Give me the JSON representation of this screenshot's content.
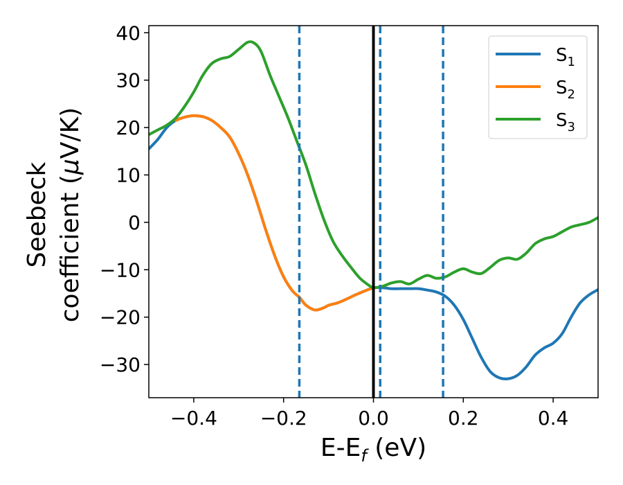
{
  "chart_data": {
    "type": "line",
    "xlabel_main": "E-E",
    "xlabel_sub": "f",
    "xlabel_tail": " (eV)",
    "ylabel_line1": "Seebeck",
    "ylabel_line2_prefix": "coefficient  (",
    "ylabel_line2_mu": "μ",
    "ylabel_line2_suffix": "V/K)",
    "xlim": [
      -0.5,
      0.5
    ],
    "ylim": [
      -37,
      41.5
    ],
    "xticks": [
      -0.4,
      -0.2,
      0.0,
      0.2,
      0.4
    ],
    "xtick_labels": [
      "−0.4",
      "−0.2",
      "0.0",
      "0.2",
      "0.4"
    ],
    "yticks": [
      -30,
      -20,
      -10,
      0,
      10,
      20,
      30,
      40
    ],
    "ytick_labels": [
      "−30",
      "−20",
      "−10",
      "0",
      "10",
      "20",
      "30",
      "40"
    ],
    "grid": false,
    "legend_position": "top-right",
    "vlines": [
      {
        "x": -0.165,
        "style": "dashed",
        "color": "#1f77b4"
      },
      {
        "x": 0.0,
        "style": "solid",
        "color": "#000000"
      },
      {
        "x": 0.015,
        "style": "dashed",
        "color": "#1f77b4"
      },
      {
        "x": 0.155,
        "style": "dashed",
        "color": "#1f77b4"
      }
    ],
    "series": [
      {
        "name": "S",
        "sub": "1",
        "color": "#1f77b4",
        "x": [
          -0.5,
          -0.48,
          -0.46,
          -0.44,
          -0.42,
          -0.4,
          -0.38,
          -0.36,
          -0.34,
          -0.32,
          -0.3,
          -0.28,
          -0.26,
          -0.24,
          -0.22,
          -0.2,
          -0.18,
          -0.165,
          -0.15,
          -0.13,
          -0.11,
          -0.1,
          -0.08,
          -0.06,
          -0.04,
          -0.02,
          0.0,
          0.02,
          0.04,
          0.06,
          0.08,
          0.1,
          0.12,
          0.14,
          0.16,
          0.18,
          0.2,
          0.22,
          0.24,
          0.26,
          0.28,
          0.3,
          0.32,
          0.34,
          0.36,
          0.38,
          0.4,
          0.42,
          0.44,
          0.46,
          0.48,
          0.5
        ],
        "y": [
          15.5,
          17.5,
          20.0,
          21.5,
          22.2,
          22.5,
          22.3,
          21.5,
          20.0,
          18.0,
          14.5,
          10.0,
          4.5,
          -1.5,
          -7.0,
          -11.5,
          -14.5,
          -15.8,
          -17.5,
          -18.5,
          -18.0,
          -17.5,
          -17.0,
          -16.2,
          -15.3,
          -14.5,
          -13.8,
          -13.8,
          -14.0,
          -14.0,
          -14.0,
          -14.0,
          -14.3,
          -14.7,
          -15.6,
          -17.5,
          -20.5,
          -24.5,
          -28.5,
          -31.5,
          -32.8,
          -33.0,
          -32.3,
          -30.5,
          -28.0,
          -26.5,
          -25.5,
          -23.5,
          -20.0,
          -17.0,
          -15.3,
          -14.2
        ]
      },
      {
        "name": "S",
        "sub": "2",
        "color": "#ff7f0e",
        "x": [
          -0.44,
          -0.42,
          -0.4,
          -0.38,
          -0.36,
          -0.34,
          -0.32,
          -0.3,
          -0.28,
          -0.26,
          -0.24,
          -0.22,
          -0.2,
          -0.18,
          -0.165,
          -0.15,
          -0.13,
          -0.11,
          -0.1,
          -0.08,
          -0.06,
          -0.04,
          -0.02,
          0.0
        ],
        "y": [
          21.5,
          22.2,
          22.5,
          22.3,
          21.5,
          20.0,
          18.0,
          14.5,
          10.0,
          4.5,
          -1.5,
          -7.0,
          -11.5,
          -14.5,
          -15.8,
          -17.5,
          -18.5,
          -18.0,
          -17.5,
          -17.0,
          -16.2,
          -15.3,
          -14.5,
          -13.8
        ]
      },
      {
        "name": "S",
        "sub": "3",
        "color": "#2ca02c",
        "x": [
          -0.5,
          -0.48,
          -0.46,
          -0.44,
          -0.42,
          -0.4,
          -0.38,
          -0.36,
          -0.34,
          -0.32,
          -0.3,
          -0.28,
          -0.265,
          -0.25,
          -0.23,
          -0.21,
          -0.19,
          -0.17,
          -0.15,
          -0.13,
          -0.11,
          -0.09,
          -0.07,
          -0.05,
          -0.03,
          -0.01,
          0.0,
          0.02,
          0.04,
          0.06,
          0.08,
          0.1,
          0.12,
          0.14,
          0.16,
          0.18,
          0.2,
          0.22,
          0.24,
          0.26,
          0.28,
          0.3,
          0.32,
          0.34,
          0.36,
          0.38,
          0.4,
          0.42,
          0.44,
          0.46,
          0.48,
          0.5
        ],
        "y": [
          18.5,
          19.5,
          20.5,
          22.0,
          24.5,
          27.5,
          31.0,
          33.5,
          34.5,
          35.0,
          36.5,
          38.0,
          37.8,
          36.0,
          31.0,
          26.5,
          22.0,
          17.0,
          12.0,
          6.0,
          0.5,
          -4.0,
          -7.0,
          -9.5,
          -11.8,
          -13.3,
          -13.8,
          -13.5,
          -12.8,
          -12.5,
          -13.0,
          -12.0,
          -11.2,
          -11.8,
          -11.5,
          -10.5,
          -9.8,
          -10.5,
          -10.8,
          -9.5,
          -8.0,
          -7.5,
          -7.8,
          -6.5,
          -4.5,
          -3.5,
          -3.0,
          -2.0,
          -1.0,
          -0.5,
          0.0,
          1.0
        ]
      }
    ]
  }
}
